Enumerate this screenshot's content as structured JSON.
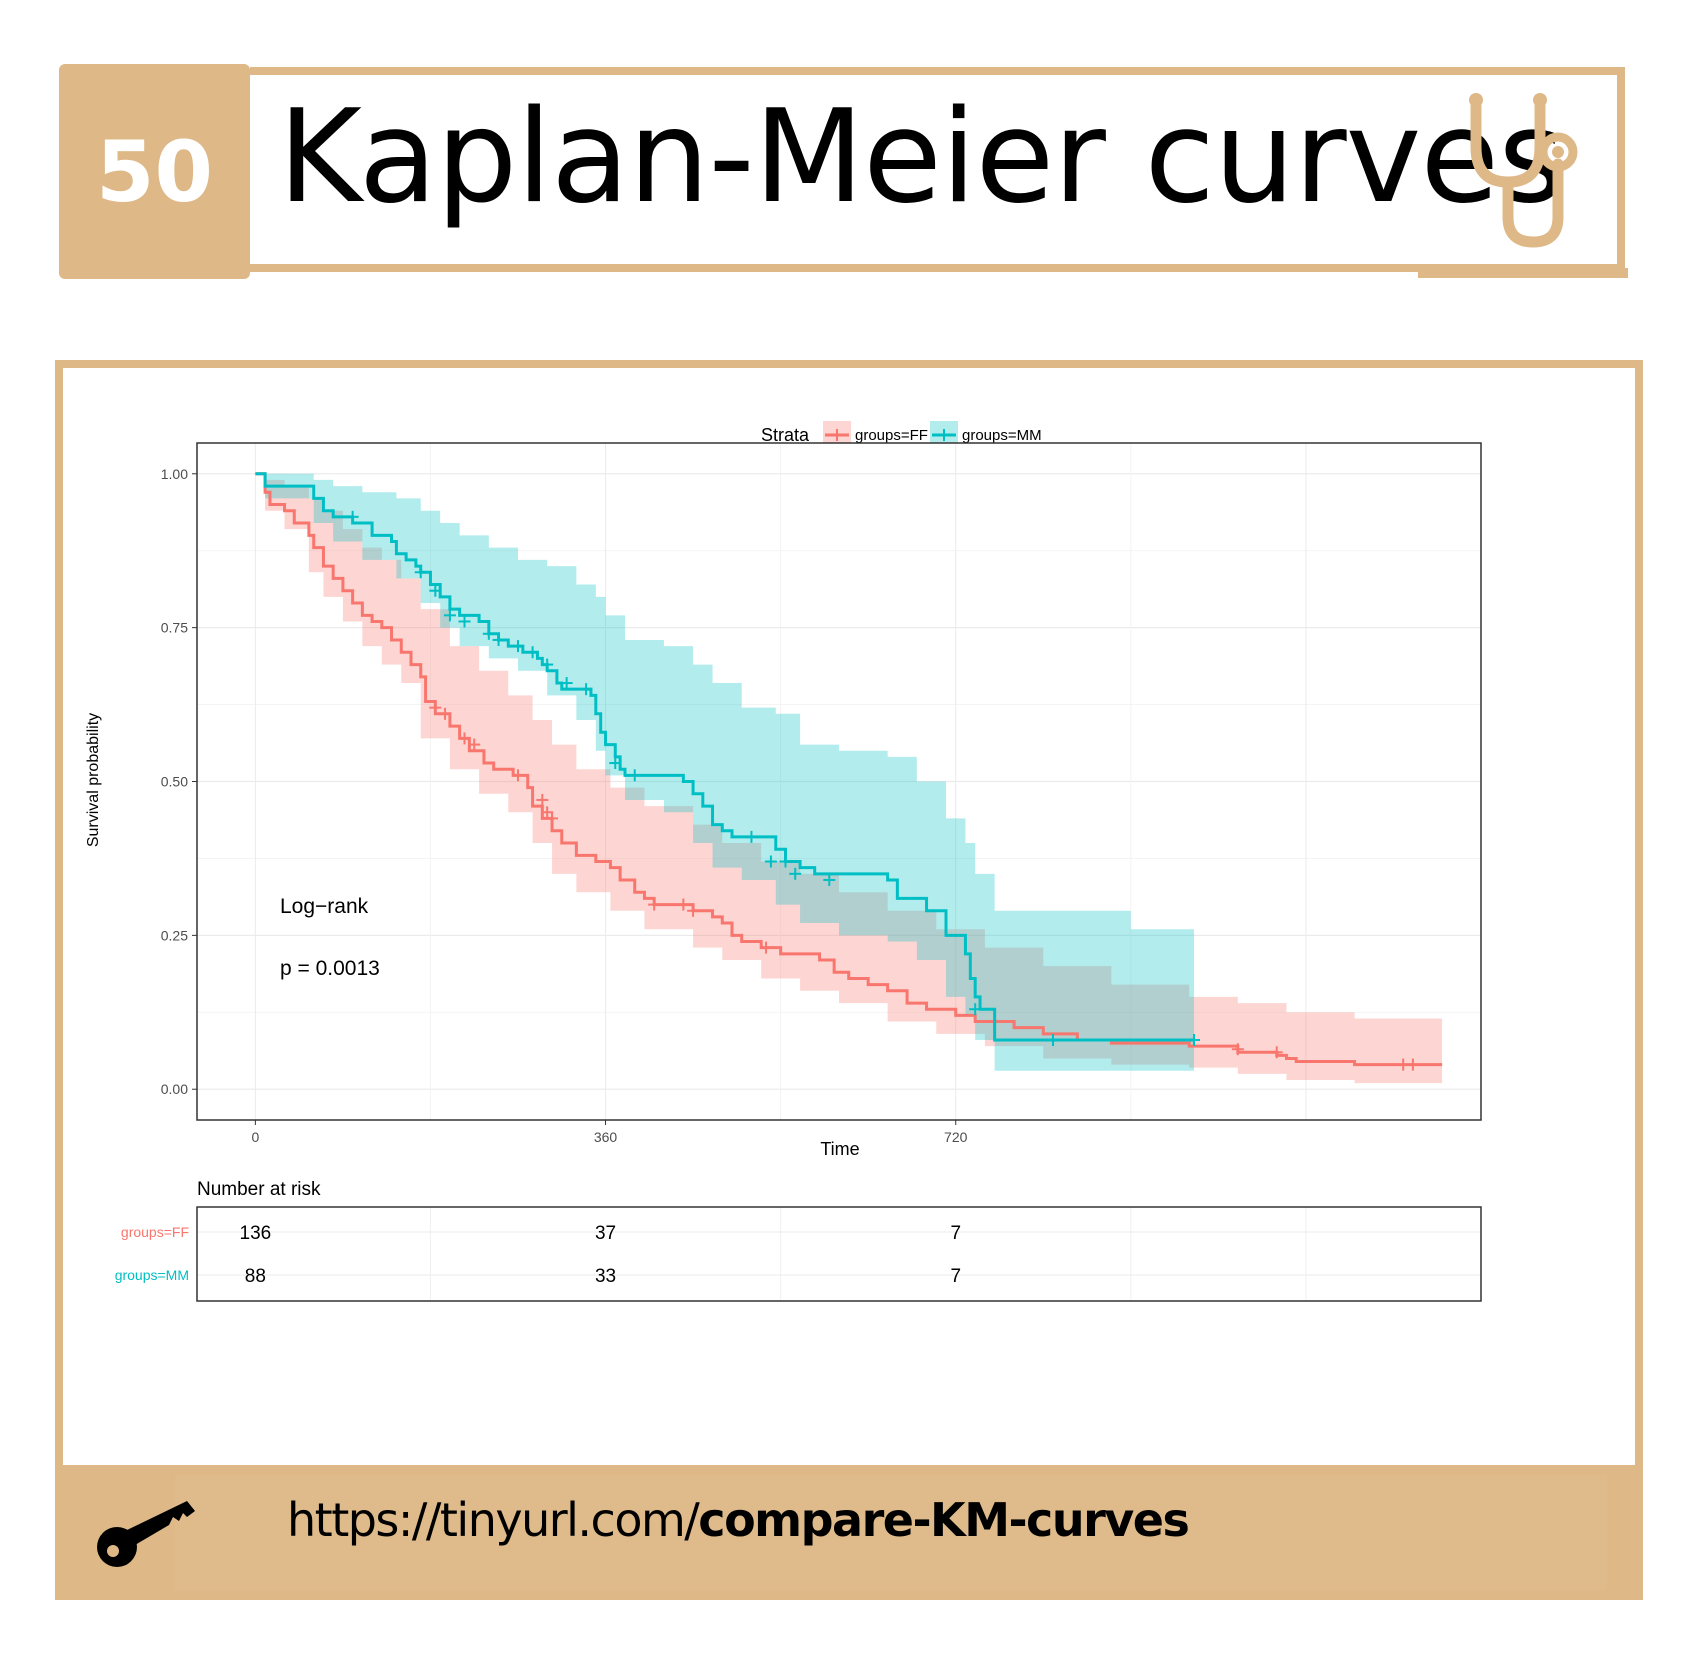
{
  "header": {
    "number": "50",
    "title": "Kaplan-Meier curves",
    "icon": "stethoscope-icon",
    "accent": "#deb887"
  },
  "footer": {
    "link_prefix": "https://tinyurl.com/",
    "link_bold": "compare-KM-curves",
    "icon": "key-icon"
  },
  "chart_data": {
    "type": "line",
    "subtype": "kaplan-meier",
    "xlabel": "Time",
    "ylabel": "Survival probability",
    "xlim": [
      -60,
      1260
    ],
    "ylim": [
      -0.05,
      1.05
    ],
    "x_ticks": [
      0,
      360,
      720
    ],
    "y_ticks": [
      0.0,
      0.25,
      0.5,
      0.75,
      1.0
    ],
    "y_tick_labels": [
      "0.00",
      "0.25",
      "0.50",
      "0.75",
      "1.00"
    ],
    "grid": true,
    "legend": {
      "title": "Strata",
      "position": "top",
      "entries": [
        "groups=FF",
        "groups=MM"
      ]
    },
    "annotation": {
      "title": "Log−rank",
      "pvalue": "p = 0.0013"
    },
    "series": [
      {
        "name": "groups=FF",
        "color": "#f8766d",
        "steps": [
          [
            0,
            1.0
          ],
          [
            10,
            0.97
          ],
          [
            15,
            0.95
          ],
          [
            30,
            0.94
          ],
          [
            40,
            0.92
          ],
          [
            55,
            0.9
          ],
          [
            60,
            0.88
          ],
          [
            70,
            0.85
          ],
          [
            80,
            0.83
          ],
          [
            90,
            0.81
          ],
          [
            100,
            0.79
          ],
          [
            110,
            0.77
          ],
          [
            120,
            0.76
          ],
          [
            130,
            0.75
          ],
          [
            140,
            0.73
          ],
          [
            150,
            0.71
          ],
          [
            160,
            0.69
          ],
          [
            170,
            0.67
          ],
          [
            175,
            0.63
          ],
          [
            185,
            0.61
          ],
          [
            200,
            0.59
          ],
          [
            210,
            0.57
          ],
          [
            220,
            0.55
          ],
          [
            235,
            0.53
          ],
          [
            245,
            0.52
          ],
          [
            265,
            0.51
          ],
          [
            280,
            0.49
          ],
          [
            285,
            0.46
          ],
          [
            295,
            0.44
          ],
          [
            305,
            0.42
          ],
          [
            315,
            0.4
          ],
          [
            330,
            0.38
          ],
          [
            350,
            0.37
          ],
          [
            365,
            0.36
          ],
          [
            375,
            0.34
          ],
          [
            390,
            0.32
          ],
          [
            400,
            0.31
          ],
          [
            410,
            0.3
          ],
          [
            450,
            0.29
          ],
          [
            470,
            0.28
          ],
          [
            480,
            0.27
          ],
          [
            490,
            0.25
          ],
          [
            500,
            0.24
          ],
          [
            520,
            0.23
          ],
          [
            540,
            0.22
          ],
          [
            580,
            0.21
          ],
          [
            595,
            0.19
          ],
          [
            610,
            0.18
          ],
          [
            630,
            0.17
          ],
          [
            650,
            0.16
          ],
          [
            670,
            0.14
          ],
          [
            690,
            0.13
          ],
          [
            720,
            0.12
          ],
          [
            740,
            0.11
          ],
          [
            780,
            0.1
          ],
          [
            810,
            0.09
          ],
          [
            845,
            0.08
          ],
          [
            880,
            0.075
          ],
          [
            960,
            0.07
          ],
          [
            1010,
            0.06
          ],
          [
            1050,
            0.055
          ],
          [
            1060,
            0.05
          ],
          [
            1070,
            0.045
          ],
          [
            1130,
            0.04
          ],
          [
            1200,
            0.04
          ]
        ],
        "end": 1220,
        "censors": [
          [
            185,
            0.62
          ],
          [
            195,
            0.61
          ],
          [
            215,
            0.57
          ],
          [
            225,
            0.56
          ],
          [
            270,
            0.51
          ],
          [
            295,
            0.47
          ],
          [
            300,
            0.45
          ],
          [
            305,
            0.44
          ],
          [
            410,
            0.3
          ],
          [
            440,
            0.3
          ],
          [
            450,
            0.29
          ],
          [
            525,
            0.23
          ],
          [
            1010,
            0.065
          ],
          [
            1050,
            0.06
          ],
          [
            1180,
            0.04
          ],
          [
            1190,
            0.04
          ]
        ],
        "band": [
          [
            0,
            1.0,
            1.0
          ],
          [
            10,
            0.99,
            0.94
          ],
          [
            30,
            0.98,
            0.91
          ],
          [
            55,
            0.96,
            0.84
          ],
          [
            70,
            0.94,
            0.8
          ],
          [
            90,
            0.91,
            0.76
          ],
          [
            110,
            0.88,
            0.72
          ],
          [
            130,
            0.86,
            0.69
          ],
          [
            150,
            0.83,
            0.66
          ],
          [
            170,
            0.78,
            0.57
          ],
          [
            200,
            0.72,
            0.52
          ],
          [
            230,
            0.68,
            0.48
          ],
          [
            260,
            0.64,
            0.45
          ],
          [
            285,
            0.6,
            0.4
          ],
          [
            305,
            0.56,
            0.35
          ],
          [
            330,
            0.52,
            0.32
          ],
          [
            365,
            0.49,
            0.29
          ],
          [
            400,
            0.46,
            0.26
          ],
          [
            450,
            0.43,
            0.23
          ],
          [
            480,
            0.4,
            0.21
          ],
          [
            520,
            0.37,
            0.18
          ],
          [
            560,
            0.35,
            0.16
          ],
          [
            600,
            0.32,
            0.14
          ],
          [
            650,
            0.29,
            0.11
          ],
          [
            700,
            0.26,
            0.09
          ],
          [
            750,
            0.23,
            0.07
          ],
          [
            810,
            0.2,
            0.05
          ],
          [
            880,
            0.17,
            0.04
          ],
          [
            960,
            0.15,
            0.035
          ],
          [
            1010,
            0.14,
            0.025
          ],
          [
            1060,
            0.125,
            0.015
          ],
          [
            1130,
            0.115,
            0.01
          ],
          [
            1220,
            0.115,
            0.01
          ]
        ]
      },
      {
        "name": "groups=MM",
        "color": "#00bfc4",
        "steps": [
          [
            0,
            1.0
          ],
          [
            10,
            0.98
          ],
          [
            60,
            0.96
          ],
          [
            70,
            0.94
          ],
          [
            80,
            0.93
          ],
          [
            100,
            0.92
          ],
          [
            120,
            0.9
          ],
          [
            140,
            0.89
          ],
          [
            145,
            0.87
          ],
          [
            155,
            0.86
          ],
          [
            165,
            0.85
          ],
          [
            170,
            0.84
          ],
          [
            180,
            0.82
          ],
          [
            190,
            0.8
          ],
          [
            200,
            0.78
          ],
          [
            210,
            0.77
          ],
          [
            230,
            0.76
          ],
          [
            240,
            0.74
          ],
          [
            250,
            0.73
          ],
          [
            260,
            0.72
          ],
          [
            275,
            0.71
          ],
          [
            290,
            0.7
          ],
          [
            295,
            0.69
          ],
          [
            300,
            0.68
          ],
          [
            310,
            0.66
          ],
          [
            315,
            0.65
          ],
          [
            330,
            0.65
          ],
          [
            345,
            0.64
          ],
          [
            350,
            0.61
          ],
          [
            355,
            0.58
          ],
          [
            360,
            0.56
          ],
          [
            370,
            0.54
          ],
          [
            375,
            0.52
          ],
          [
            380,
            0.51
          ],
          [
            420,
            0.51
          ],
          [
            440,
            0.5
          ],
          [
            450,
            0.48
          ],
          [
            460,
            0.46
          ],
          [
            470,
            0.43
          ],
          [
            480,
            0.42
          ],
          [
            490,
            0.41
          ],
          [
            520,
            0.41
          ],
          [
            530,
            0.41
          ],
          [
            535,
            0.39
          ],
          [
            545,
            0.37
          ],
          [
            560,
            0.36
          ],
          [
            575,
            0.35
          ],
          [
            650,
            0.34
          ],
          [
            660,
            0.31
          ],
          [
            690,
            0.29
          ],
          [
            710,
            0.25
          ],
          [
            730,
            0.22
          ],
          [
            735,
            0.18
          ],
          [
            740,
            0.15
          ],
          [
            745,
            0.13
          ],
          [
            760,
            0.08
          ],
          [
            900,
            0.08
          ],
          [
            965,
            0.08
          ]
        ],
        "end": 965,
        "censors": [
          [
            100,
            0.93
          ],
          [
            170,
            0.84
          ],
          [
            185,
            0.81
          ],
          [
            200,
            0.77
          ],
          [
            215,
            0.76
          ],
          [
            240,
            0.74
          ],
          [
            250,
            0.73
          ],
          [
            270,
            0.72
          ],
          [
            285,
            0.71
          ],
          [
            300,
            0.69
          ],
          [
            320,
            0.66
          ],
          [
            340,
            0.65
          ],
          [
            370,
            0.53
          ],
          [
            390,
            0.51
          ],
          [
            510,
            0.41
          ],
          [
            530,
            0.37
          ],
          [
            545,
            0.37
          ],
          [
            555,
            0.35
          ],
          [
            590,
            0.34
          ],
          [
            740,
            0.13
          ],
          [
            820,
            0.08
          ],
          [
            965,
            0.08
          ]
        ],
        "band": [
          [
            0,
            1.0,
            1.0
          ],
          [
            10,
            1.0,
            0.96
          ],
          [
            60,
            0.99,
            0.92
          ],
          [
            80,
            0.98,
            0.89
          ],
          [
            110,
            0.97,
            0.86
          ],
          [
            145,
            0.96,
            0.83
          ],
          [
            170,
            0.94,
            0.79
          ],
          [
            190,
            0.92,
            0.75
          ],
          [
            210,
            0.9,
            0.72
          ],
          [
            240,
            0.88,
            0.7
          ],
          [
            270,
            0.86,
            0.68
          ],
          [
            300,
            0.85,
            0.64
          ],
          [
            330,
            0.82,
            0.6
          ],
          [
            350,
            0.8,
            0.55
          ],
          [
            360,
            0.77,
            0.51
          ],
          [
            380,
            0.73,
            0.47
          ],
          [
            420,
            0.72,
            0.45
          ],
          [
            450,
            0.69,
            0.4
          ],
          [
            470,
            0.66,
            0.36
          ],
          [
            500,
            0.62,
            0.34
          ],
          [
            535,
            0.61,
            0.3
          ],
          [
            560,
            0.56,
            0.27
          ],
          [
            600,
            0.55,
            0.25
          ],
          [
            650,
            0.54,
            0.24
          ],
          [
            680,
            0.5,
            0.21
          ],
          [
            710,
            0.44,
            0.15
          ],
          [
            730,
            0.4,
            0.12
          ],
          [
            740,
            0.35,
            0.08
          ],
          [
            760,
            0.29,
            0.03
          ],
          [
            900,
            0.26,
            0.03
          ],
          [
            965,
            0.26,
            0.03
          ]
        ]
      }
    ],
    "risk_table": {
      "title": "Number at risk",
      "rows": [
        {
          "label": "groups=FF",
          "color": "#f8766d",
          "values": [
            "136",
            "37",
            "7"
          ]
        },
        {
          "label": "groups=MM",
          "color": "#00bfc4",
          "values": [
            "88",
            "33",
            "7"
          ]
        }
      ]
    }
  }
}
